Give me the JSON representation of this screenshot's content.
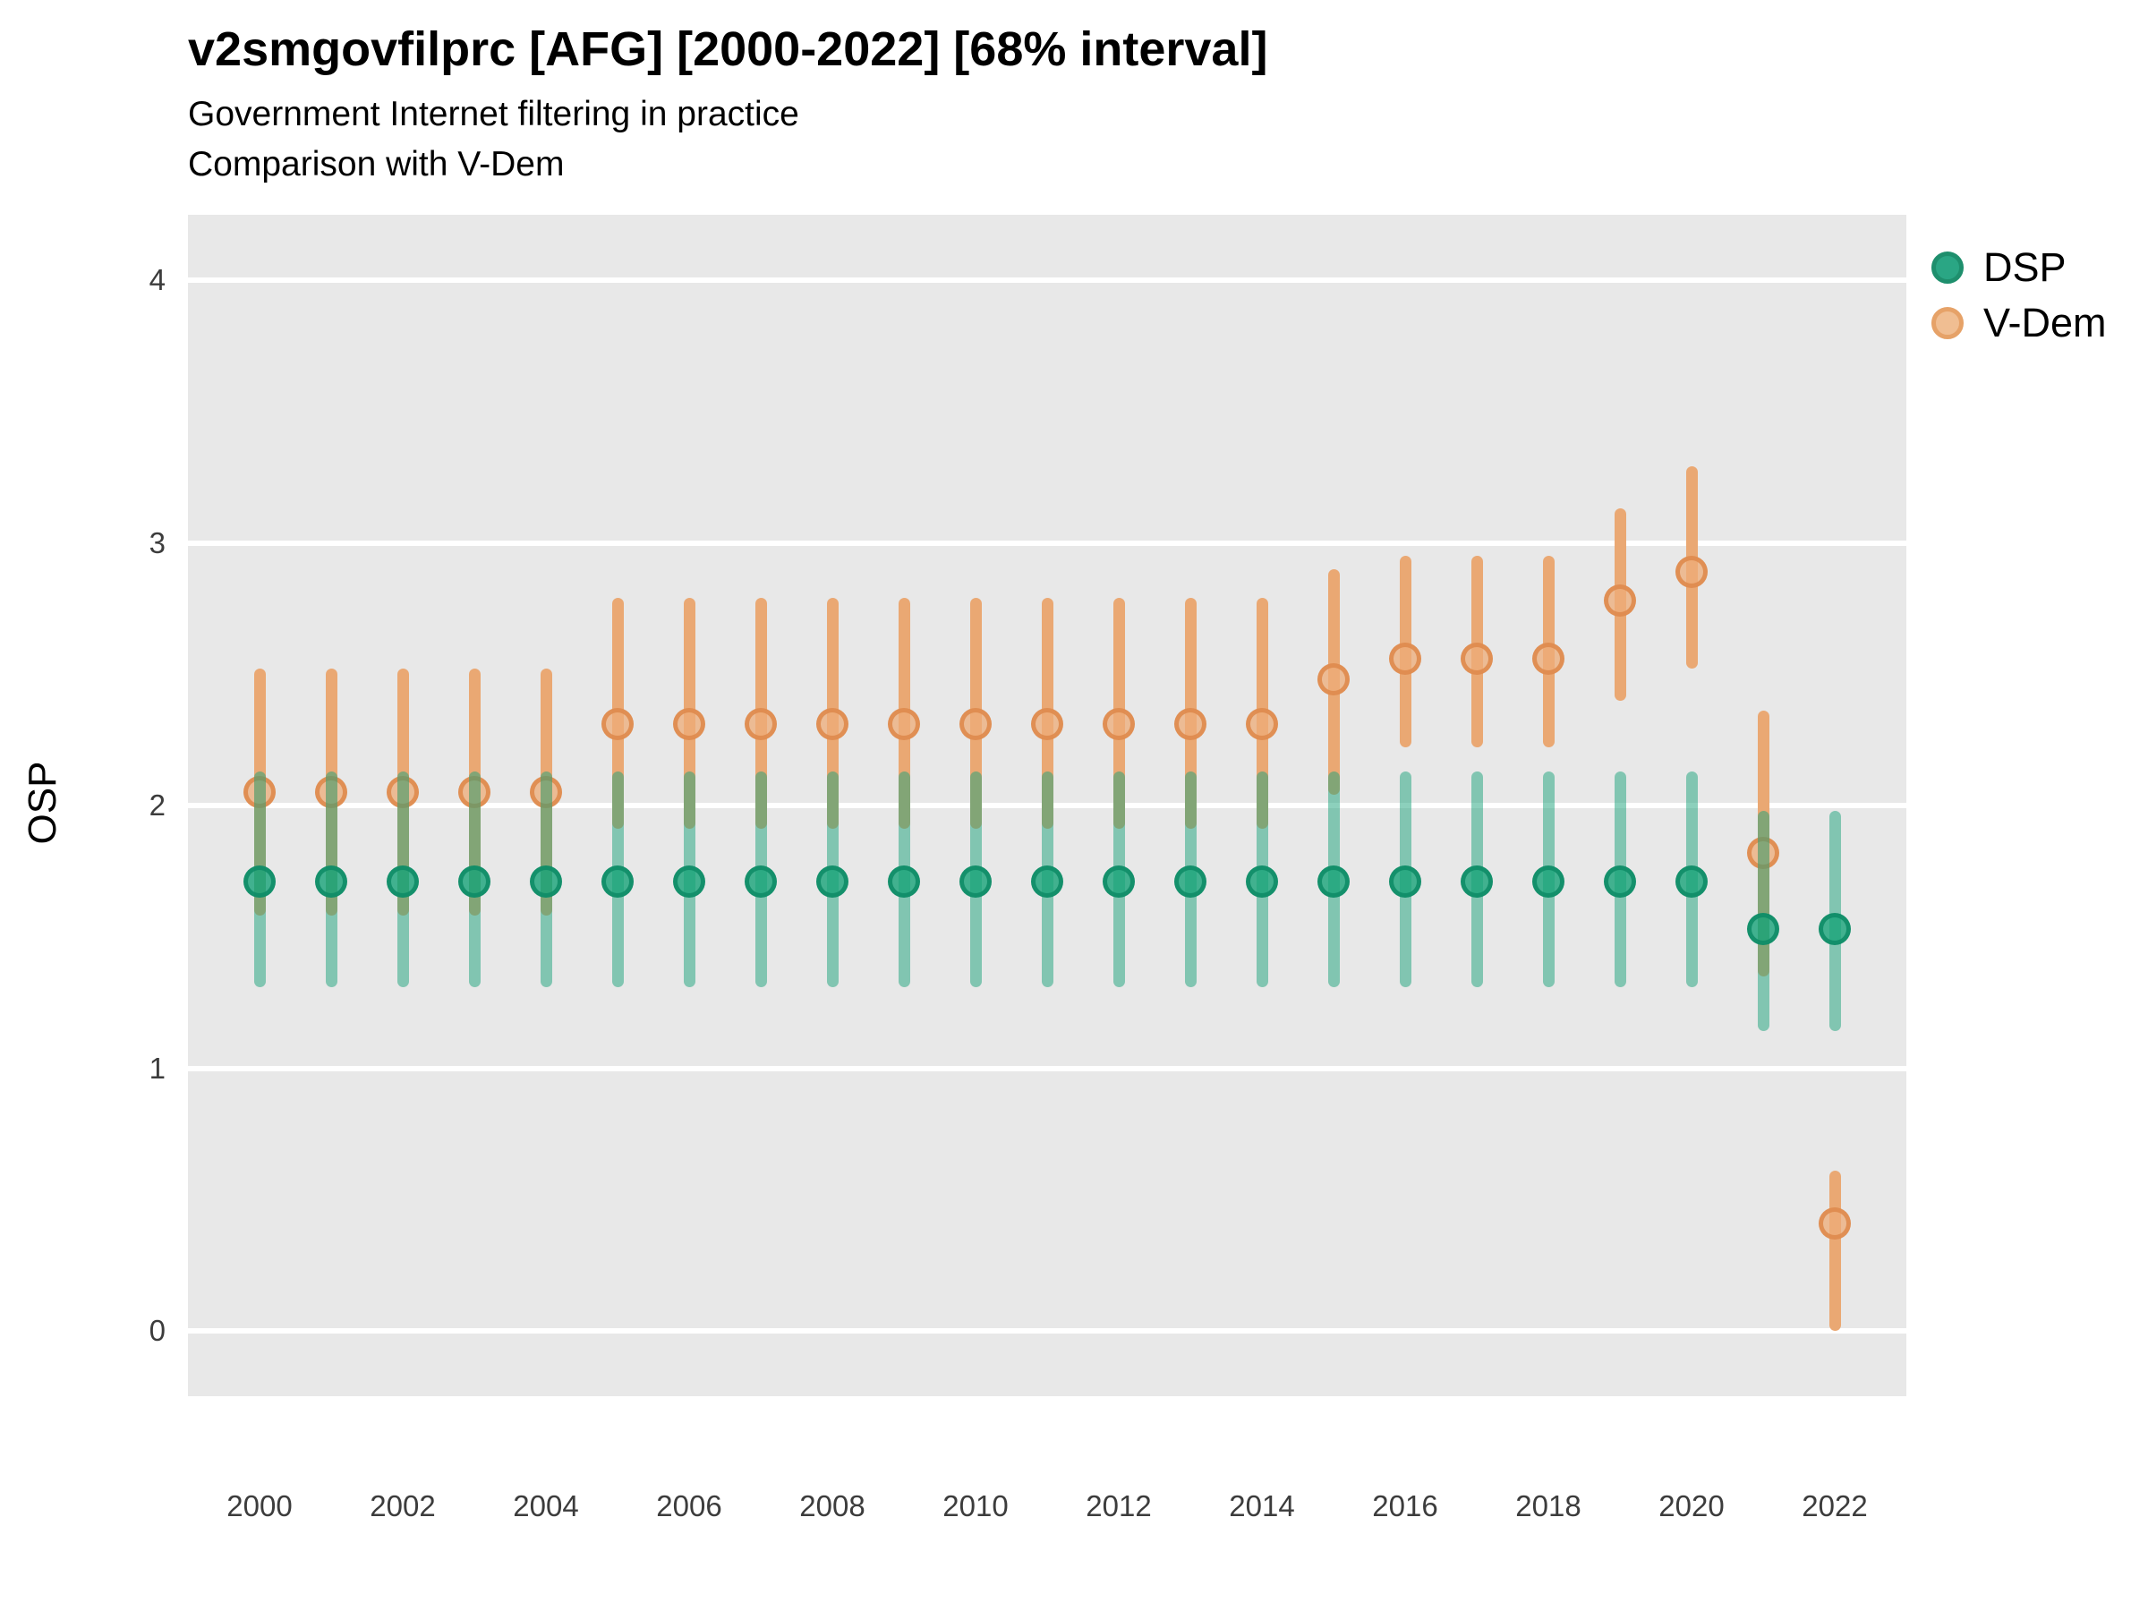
{
  "header": {
    "title": "v2smgovfilprc [AFG] [2000-2022] [68% interval]",
    "subtitle1": "Government Internet filtering in practice",
    "subtitle2": "Comparison with V-Dem"
  },
  "ylabel": "OSP",
  "legend": {
    "items": [
      {
        "label": "DSP",
        "fill": "#2aa684",
        "stroke": "#1e8f6d"
      },
      {
        "label": "V-Dem",
        "fill": "#f0be92",
        "stroke": "#e6a268"
      }
    ]
  },
  "axes": {
    "y_ticks": [
      4,
      3,
      2,
      1,
      0
    ],
    "x_ticks": [
      2000,
      2002,
      2004,
      2006,
      2008,
      2010,
      2012,
      2014,
      2016,
      2018,
      2020,
      2022
    ],
    "ylim": [
      0,
      4
    ]
  },
  "chart_data": {
    "type": "scatter",
    "subtype": "pointrange",
    "interval": "68%",
    "title": "v2smgovfilprc [AFG] [2000-2022] [68% interval]",
    "xlabel": "",
    "ylabel": "OSP",
    "ylim": [
      0,
      4
    ],
    "x": [
      2000,
      2001,
      2002,
      2003,
      2004,
      2005,
      2006,
      2007,
      2008,
      2009,
      2010,
      2011,
      2012,
      2013,
      2014,
      2015,
      2016,
      2017,
      2018,
      2019,
      2020,
      2021,
      2022
    ],
    "series": [
      {
        "name": "DSP",
        "est": [
          1.71,
          1.71,
          1.71,
          1.71,
          1.71,
          1.71,
          1.71,
          1.71,
          1.71,
          1.71,
          1.71,
          1.71,
          1.71,
          1.71,
          1.71,
          1.71,
          1.71,
          1.71,
          1.71,
          1.71,
          1.71,
          1.53,
          1.53
        ],
        "lo": [
          1.31,
          1.31,
          1.31,
          1.31,
          1.31,
          1.31,
          1.31,
          1.31,
          1.31,
          1.31,
          1.31,
          1.31,
          1.31,
          1.31,
          1.31,
          1.31,
          1.31,
          1.31,
          1.31,
          1.31,
          1.31,
          1.14,
          1.14
        ],
        "hi": [
          2.13,
          2.13,
          2.13,
          2.13,
          2.13,
          2.13,
          2.13,
          2.13,
          2.13,
          2.13,
          2.13,
          2.13,
          2.13,
          2.13,
          2.13,
          2.13,
          2.13,
          2.13,
          2.13,
          2.13,
          2.13,
          1.98,
          1.98
        ],
        "bar_color": "rgba(26,161,122,0.5)",
        "point_fill": "rgba(23,162,120,0.8)",
        "point_stroke": "rgba(16,140,103,0.9)"
      },
      {
        "name": "V-Dem",
        "est": [
          2.05,
          2.05,
          2.05,
          2.05,
          2.05,
          2.31,
          2.31,
          2.31,
          2.31,
          2.31,
          2.31,
          2.31,
          2.31,
          2.31,
          2.31,
          2.48,
          2.56,
          2.56,
          2.56,
          2.78,
          2.89,
          1.82,
          0.41
        ],
        "lo": [
          1.58,
          1.58,
          1.58,
          1.58,
          1.58,
          1.91,
          1.91,
          1.91,
          1.91,
          1.91,
          1.91,
          1.91,
          1.91,
          1.91,
          1.91,
          2.04,
          2.22,
          2.22,
          2.22,
          2.4,
          2.52,
          1.35,
          0.0
        ],
        "hi": [
          2.52,
          2.52,
          2.52,
          2.52,
          2.52,
          2.79,
          2.79,
          2.79,
          2.79,
          2.79,
          2.79,
          2.79,
          2.79,
          2.79,
          2.79,
          2.9,
          2.95,
          2.95,
          2.95,
          3.13,
          3.29,
          2.36,
          0.61
        ],
        "bar_color": "#eaa873",
        "point_fill": "rgba(238,172,120,0.75)",
        "point_stroke": "rgba(222,138,77,0.9)"
      }
    ]
  }
}
